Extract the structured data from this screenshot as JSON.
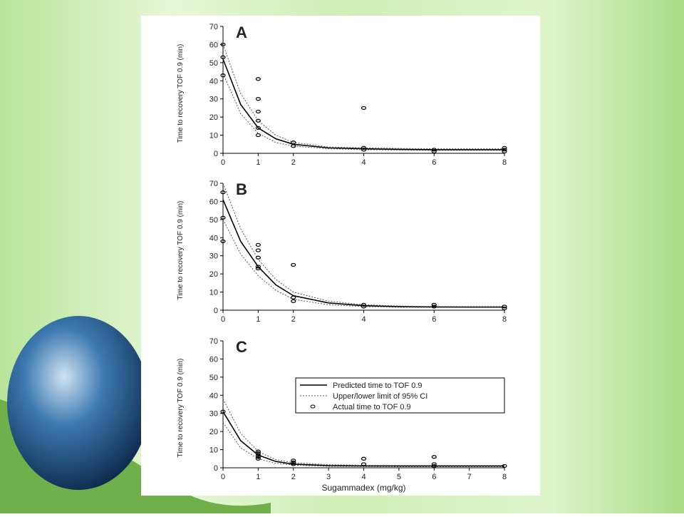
{
  "chart_data": [
    {
      "type": "line",
      "panel": "A",
      "ylabel": "Time to recovery TOF 0.9 (min)",
      "xlim": [
        0,
        8
      ],
      "xticks": [
        0,
        1,
        2,
        4,
        6,
        8
      ],
      "ylim": [
        0,
        70
      ],
      "yticks": [
        0,
        10,
        20,
        30,
        40,
        50,
        60,
        70
      ],
      "series": [
        {
          "style": "solid",
          "color": "#000000",
          "x": [
            0,
            0.5,
            1,
            1.5,
            2,
            3,
            4,
            5,
            6,
            7,
            8
          ],
          "values": [
            52,
            27,
            14,
            8,
            5,
            3,
            2.5,
            2.2,
            2,
            2,
            2
          ]
        },
        {
          "style": "dotted",
          "color": "#555555",
          "x": [
            0,
            0.5,
            1,
            1.5,
            2,
            3,
            4,
            5,
            6,
            7,
            8
          ],
          "values": [
            60,
            33,
            18,
            10,
            6,
            3.5,
            3,
            2.7,
            2.5,
            2.5,
            2.5
          ],
          "lower": [
            44,
            22,
            11,
            6,
            4,
            2.5,
            2,
            1.8,
            1.6,
            1.6,
            1.6
          ]
        },
        {
          "style": "points",
          "color": "#000000",
          "x": [
            0,
            0,
            0,
            1,
            1,
            1,
            1,
            1,
            1,
            2,
            2,
            4,
            4,
            4,
            6,
            6,
            8,
            8,
            8
          ],
          "values": [
            60,
            53,
            43,
            41,
            30,
            23,
            18,
            14,
            10,
            6,
            4,
            25,
            3,
            2,
            2,
            1,
            3,
            2,
            1
          ]
        }
      ]
    },
    {
      "type": "line",
      "panel": "B",
      "ylabel": "Time to recovery TOF 0.9 (min)",
      "xlim": [
        0,
        8
      ],
      "xticks": [
        0,
        1,
        2,
        4,
        6,
        8
      ],
      "ylim": [
        0,
        70
      ],
      "yticks": [
        0,
        10,
        20,
        30,
        40,
        50,
        60,
        70
      ],
      "series": [
        {
          "style": "solid",
          "color": "#000000",
          "x": [
            0,
            0.5,
            1,
            1.5,
            2,
            3,
            4,
            5,
            6,
            7,
            8
          ],
          "values": [
            61,
            38,
            24,
            14,
            8,
            4,
            2.5,
            2,
            1.8,
            1.7,
            1.7
          ]
        },
        {
          "style": "dotted",
          "color": "#555555",
          "x": [
            0,
            0.5,
            1,
            1.5,
            2,
            3,
            4,
            5,
            6,
            7,
            8
          ],
          "values": [
            70,
            45,
            28,
            17,
            10,
            5,
            3,
            2.3,
            2,
            2,
            2
          ],
          "lower": [
            50,
            31,
            19,
            11,
            6,
            3,
            2,
            1.6,
            1.5,
            1.5,
            1.5
          ]
        },
        {
          "style": "points",
          "color": "#000000",
          "x": [
            0,
            0,
            0,
            1,
            1,
            1,
            1,
            1,
            2,
            2,
            2,
            4,
            4,
            6,
            6,
            8,
            8
          ],
          "values": [
            65,
            51,
            38,
            36,
            33,
            29,
            24,
            23,
            25,
            7,
            5,
            3,
            2,
            3,
            2,
            2,
            1
          ]
        }
      ]
    },
    {
      "type": "line",
      "panel": "C",
      "ylabel": "Time to recovery TOF 0.9 (min)",
      "xlabel": "Sugammadex (mg/kg)",
      "xlim": [
        0,
        8
      ],
      "xticks": [
        0,
        1,
        2,
        3,
        4,
        5,
        6,
        7,
        8
      ],
      "ylim": [
        0,
        70
      ],
      "yticks": [
        0,
        10,
        20,
        30,
        40,
        50,
        60,
        70
      ],
      "series": [
        {
          "name": "Predicted time to TOF 0.9",
          "style": "solid",
          "color": "#000000",
          "x": [
            0,
            0.5,
            1,
            1.5,
            2,
            3,
            4,
            5,
            6,
            7,
            8
          ],
          "values": [
            31,
            15,
            7,
            3.5,
            2,
            1.2,
            1,
            1,
            1,
            1,
            1
          ]
        },
        {
          "name": "Upper/lower limit of 95% CI",
          "style": "dotted",
          "color": "#555555",
          "x": [
            0,
            0.5,
            1,
            1.5,
            2,
            3,
            4,
            5,
            6,
            7,
            8
          ],
          "values": [
            38,
            19,
            9,
            4.5,
            2.8,
            1.7,
            1.4,
            1.3,
            1.3,
            1.3,
            1.3
          ],
          "lower": [
            25,
            11,
            5,
            2.5,
            1.5,
            0.8,
            0.7,
            0.6,
            0.6,
            0.6,
            0.6
          ]
        },
        {
          "name": "Actual time to TOF 0.9",
          "style": "points",
          "color": "#000000",
          "x": [
            0,
            1,
            1,
            1,
            1,
            1,
            2,
            2,
            2,
            4,
            4,
            6,
            6,
            6,
            8
          ],
          "values": [
            31,
            9,
            8,
            7,
            6,
            5,
            4,
            3,
            2,
            5,
            2,
            6,
            2,
            1,
            1
          ]
        }
      ]
    }
  ]
}
